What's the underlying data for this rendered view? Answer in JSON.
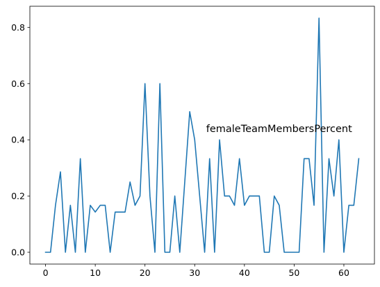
{
  "chart_data": {
    "type": "line",
    "title": "",
    "xlabel": "",
    "ylabel": "",
    "xlim": [
      -3.15,
      66.15
    ],
    "ylim": [
      -0.042,
      0.875
    ],
    "xticks": [
      0,
      10,
      20,
      30,
      40,
      50,
      60
    ],
    "yticks": [
      0.0,
      0.2,
      0.4,
      0.6,
      0.8
    ],
    "grid": false,
    "annotation": {
      "text": "femaleTeamMembersPercent",
      "x": 32.3,
      "y": 0.44
    },
    "series": [
      {
        "color": "#1f77b4",
        "x": [
          0,
          1,
          2,
          3,
          4,
          5,
          6,
          7,
          8,
          9,
          10,
          11,
          12,
          13,
          14,
          15,
          16,
          17,
          18,
          19,
          20,
          21,
          22,
          23,
          24,
          25,
          26,
          27,
          28,
          29,
          30,
          31,
          32,
          33,
          34,
          35,
          36,
          37,
          38,
          39,
          40,
          41,
          42,
          43,
          44,
          45,
          46,
          47,
          48,
          49,
          50,
          51,
          52,
          53,
          54,
          55,
          56,
          57,
          58,
          59,
          60,
          61,
          62,
          63
        ],
        "values": [
          0,
          0,
          0.167,
          0.286,
          0,
          0.167,
          0,
          0.333,
          0,
          0.167,
          0.143,
          0.167,
          0.167,
          0,
          0.143,
          0.143,
          0.143,
          0.25,
          0.167,
          0.2,
          0.6,
          0.2,
          0,
          0.6,
          0,
          0,
          0.2,
          0,
          0.25,
          0.5,
          0.4,
          0.2,
          0,
          0.333,
          0,
          0.4,
          0.2,
          0.2,
          0.167,
          0.333,
          0.167,
          0.2,
          0.2,
          0.2,
          0,
          0,
          0.2,
          0.167,
          0,
          0,
          0,
          0,
          0.333,
          0.333,
          0.167,
          0.833,
          0,
          0.333,
          0.2,
          0.4,
          0,
          0.167,
          0.167,
          0.333
        ]
      }
    ]
  }
}
